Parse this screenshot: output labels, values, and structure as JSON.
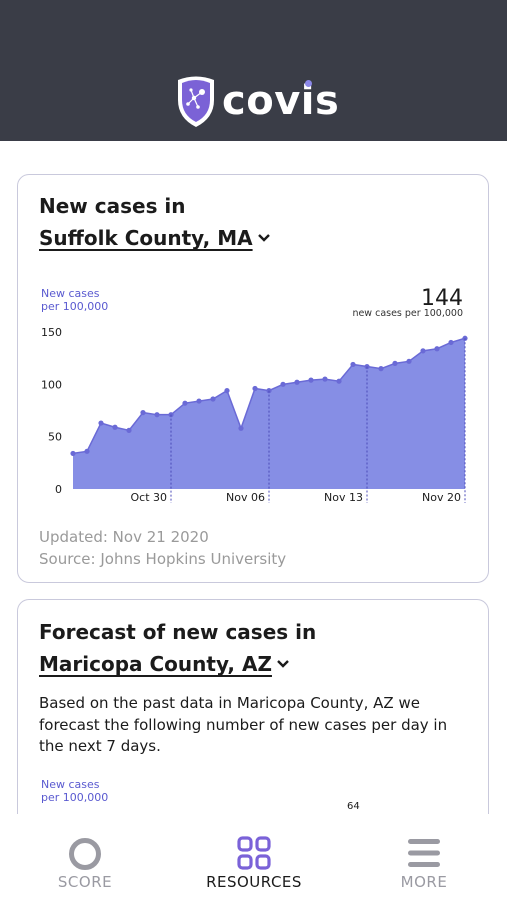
{
  "header": {
    "app_name": "covis",
    "logo_icon": "covis-shield-logo-icon"
  },
  "card1": {
    "title": "New cases in",
    "county": "Suffolk County, MA",
    "y_label_line1": "New cases",
    "y_label_line2": "per 100,000",
    "current_value": "144",
    "current_value_label": "new cases per 100,000",
    "updated": "Updated: Nov 21 2020",
    "source": "Source:  Johns Hopkins University",
    "accent_color": "#7f88e4",
    "line_color": "#6a6ad6"
  },
  "chart_data": {
    "type": "area",
    "title": "",
    "xlabel": "",
    "ylabel": "New cases per 100,000",
    "ylim": [
      0,
      150
    ],
    "yticks": [
      0,
      50,
      100,
      150
    ],
    "x_tick_labels": [
      "Oct 30",
      "Nov 06",
      "Nov 13",
      "Nov 20"
    ],
    "x_tick_indices": [
      7,
      14,
      21,
      28
    ],
    "values": [
      34,
      36,
      63,
      59,
      56,
      73,
      71,
      71,
      82,
      84,
      86,
      94,
      58,
      96,
      94,
      100,
      102,
      104,
      105,
      103,
      119,
      117,
      115,
      120,
      122,
      132,
      134,
      140,
      144
    ]
  },
  "card2": {
    "title": "Forecast of new cases in",
    "county": "Maricopa County, AZ",
    "description": "Based on the past data in Maricopa County, AZ we forecast the following number of new cases per day in the next 7 days.",
    "y_label_line1": "New cases",
    "y_label_line2": "per 100,000",
    "forecast_value": "64"
  },
  "nav": {
    "items": [
      {
        "label": "SCORE",
        "icon": "score-circle-icon",
        "color": "#9a9aa2"
      },
      {
        "label": "RESOURCES",
        "icon": "resources-grid-icon",
        "color": "#7a62d8",
        "active": true
      },
      {
        "label": "MORE",
        "icon": "hamburger-menu-icon",
        "color": "#9a9aa2"
      }
    ]
  }
}
